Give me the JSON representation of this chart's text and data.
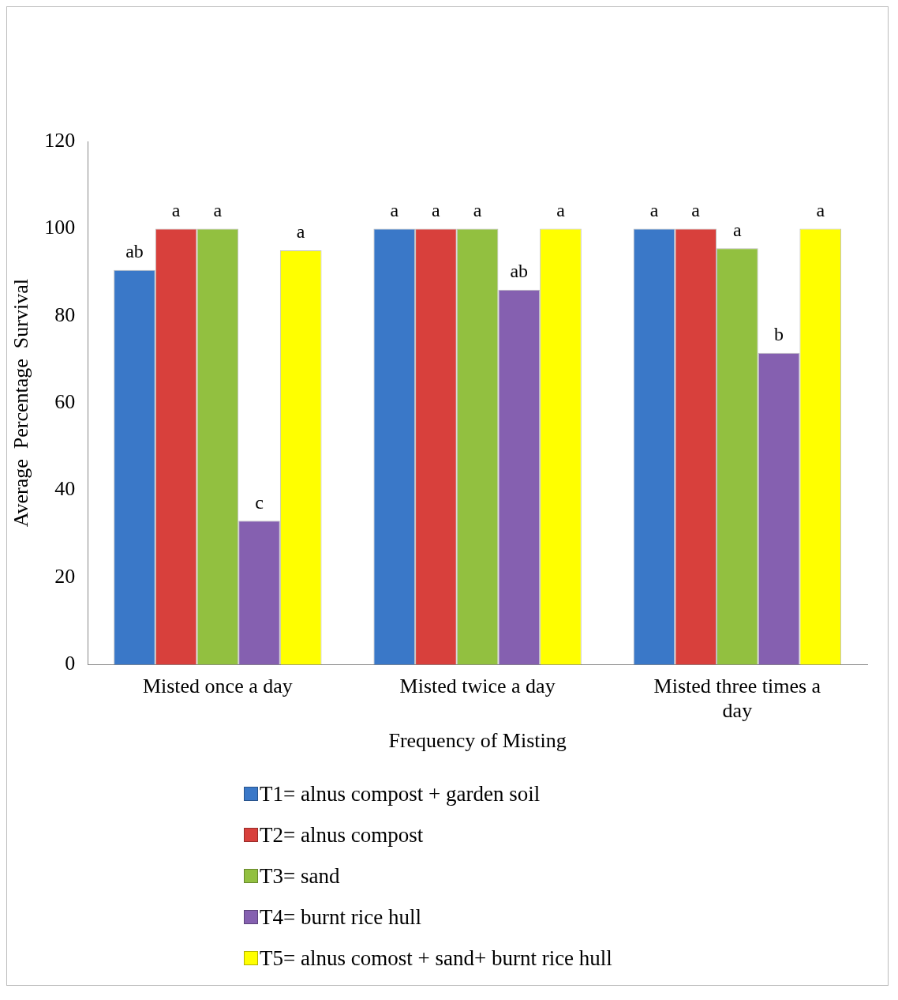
{
  "chart_data": {
    "type": "bar",
    "xlabel": "Frequency of Misting",
    "ylabel": "Average  Percentage  Survival",
    "categories": [
      "Misted once a day",
      "Misted twice a day",
      "Misted three times a day"
    ],
    "series": [
      {
        "name": "T1= alnus compost + garden soil",
        "color": "#3a78c8",
        "values": [
          90.5,
          100,
          100
        ],
        "value_labels": [
          "ab",
          "a",
          "a"
        ]
      },
      {
        "name": "T2= alnus compost",
        "color": "#d8403c",
        "values": [
          100,
          100,
          100
        ],
        "value_labels": [
          "a",
          "a",
          "a"
        ]
      },
      {
        "name": "T3= sand",
        "color": "#92c040",
        "values": [
          100,
          100,
          95.5
        ],
        "value_labels": [
          "a",
          "a",
          "a"
        ]
      },
      {
        "name": "T4= burnt rice hull",
        "color": "#8560b0",
        "values": [
          33,
          86,
          71.5
        ],
        "value_labels": [
          "c",
          "ab",
          "b"
        ]
      },
      {
        "name": "T5= alnus comost + sand+ burnt rice hull",
        "color": "#ffff00",
        "values": [
          95,
          100,
          100
        ],
        "value_labels": [
          "a",
          "a",
          "a"
        ]
      }
    ],
    "ylim": [
      0,
      120
    ],
    "yticks": [
      0,
      20,
      40,
      60,
      80,
      100,
      120
    ],
    "grid": false,
    "legend": "bottom"
  }
}
